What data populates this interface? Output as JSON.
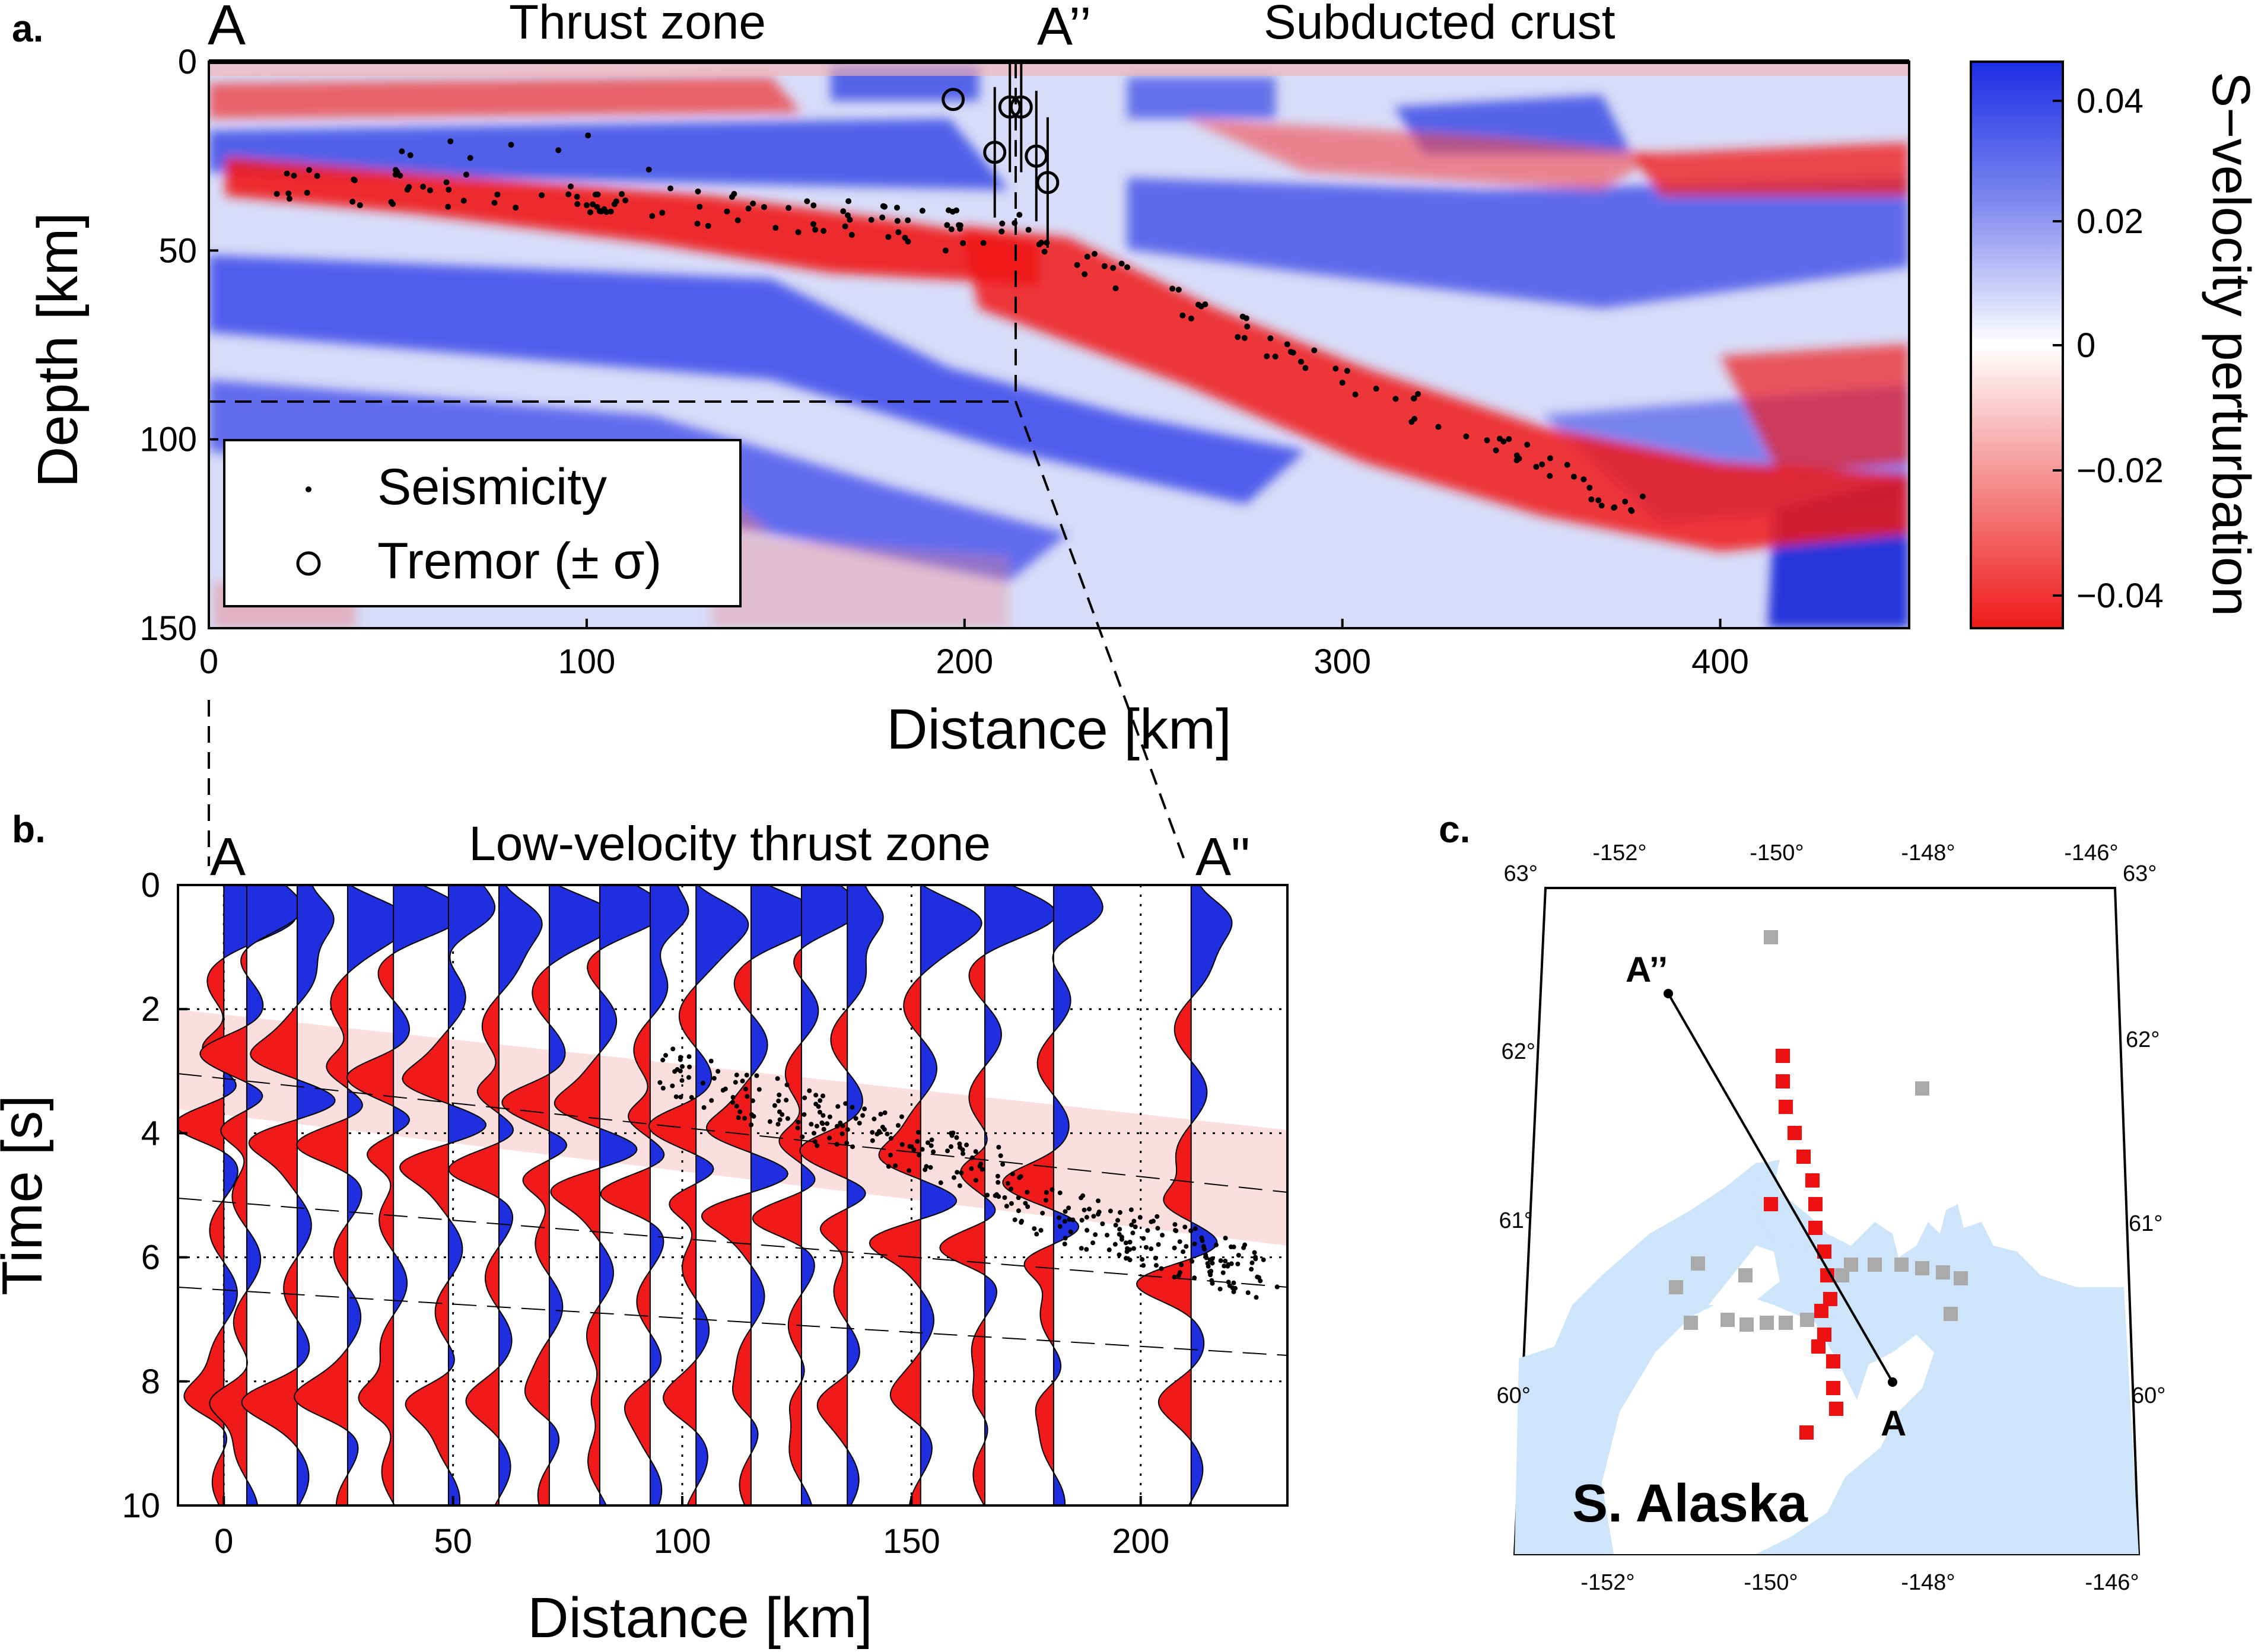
{
  "panel_a": {
    "panel_label": "a.",
    "left_label": "A",
    "mid_label": "A’’",
    "zone_label_1": "Thrust zone",
    "zone_label_2": "Subducted crust",
    "ylabel": "Depth [km]",
    "xlabel": "Distance [km]",
    "xticks": [
      "0",
      "100",
      "200",
      "300",
      "400"
    ],
    "yticks": [
      "0",
      "50",
      "100",
      "150"
    ],
    "legend": {
      "seismicity": "Seismicity",
      "tremor": "Tremor (± σ)"
    },
    "colorbar": {
      "label": "S−velocity perturbation",
      "ticks": [
        "0.04",
        "0.02",
        "0",
        "−0.02",
        "−0.04"
      ]
    }
  },
  "panel_b": {
    "panel_label": "b.",
    "left_label": "A",
    "right_label": "A\"",
    "title": "Low-velocity thrust zone",
    "ylabel": "Time [s]",
    "xlabel": "Distance [km]",
    "xticks": [
      "0",
      "50",
      "100",
      "150",
      "200"
    ],
    "yticks": [
      "0",
      "2",
      "4",
      "6",
      "8",
      "10"
    ]
  },
  "panel_c": {
    "panel_label": "c.",
    "region_label": "S. Alaska",
    "label_start": "A’’",
    "label_end": "A",
    "top_lon_ticks": [
      "-152°",
      "-150°",
      "-148°",
      "-146°"
    ],
    "bottom_lon_ticks": [
      "-152°",
      "-150°",
      "-148°",
      "-146°"
    ],
    "left_lat_ticks": [
      "63°",
      "62°",
      "61°",
      "60°"
    ],
    "right_lat_ticks": [
      "63°",
      "62°",
      "61°",
      "60°"
    ]
  },
  "colors": {
    "positive": "#1f2fe0",
    "negative": "#f01a1a",
    "water": "#cde4fa",
    "station_red": "#ee1111",
    "station_gray": "#aaaaaa",
    "highlight": "#fbdede"
  },
  "chart_data": [
    {
      "type": "heatmap",
      "title": "",
      "xlabel": "Distance [km]",
      "ylabel": "Depth [km]",
      "xlim": [
        0,
        450
      ],
      "ylim": [
        150,
        0
      ],
      "colorbar_range": [
        -0.045,
        0.045
      ],
      "features": [
        {
          "name": "low-velocity thrust zone (red band)",
          "x": [
            0,
            215
          ],
          "depth": [
            25,
            45
          ]
        },
        {
          "name": "subducted crust (red band)",
          "x": [
            215,
            450
          ],
          "depth": [
            50,
            115
          ]
        }
      ],
      "seismicity_sample": [
        {
          "x": 18,
          "y": 35
        },
        {
          "x": 40,
          "y": 38
        },
        {
          "x": 80,
          "y": 22
        },
        {
          "x": 100,
          "y": 38
        },
        {
          "x": 120,
          "y": 40
        },
        {
          "x": 140,
          "y": 42
        },
        {
          "x": 150,
          "y": 44
        },
        {
          "x": 160,
          "y": 43
        },
        {
          "x": 185,
          "y": 42
        },
        {
          "x": 195,
          "y": 50
        },
        {
          "x": 205,
          "y": 48
        },
        {
          "x": 240,
          "y": 60
        },
        {
          "x": 260,
          "y": 68
        },
        {
          "x": 280,
          "y": 78
        },
        {
          "x": 300,
          "y": 85
        },
        {
          "x": 320,
          "y": 88
        },
        {
          "x": 355,
          "y": 105
        },
        {
          "x": 372,
          "y": 118
        }
      ],
      "tremor": [
        {
          "x": 197,
          "y": 10
        },
        {
          "x": 208,
          "y": 24
        },
        {
          "x": 212,
          "y": 12
        },
        {
          "x": 215,
          "y": 12
        },
        {
          "x": 219,
          "y": 25
        },
        {
          "x": 222,
          "y": 32
        }
      ]
    },
    {
      "type": "line",
      "title": "Low-velocity thrust zone",
      "xlabel": "Distance [km]",
      "ylabel": "Time [s]",
      "xlim": [
        -10,
        232
      ],
      "ylim": [
        10,
        0
      ],
      "trace_offsets_km": [
        0,
        5,
        16,
        27,
        37,
        49,
        60,
        71,
        82,
        93,
        103,
        115,
        126,
        136,
        152,
        166,
        181,
        211
      ],
      "highlight_band_s": {
        "x": [
          -10,
          232
        ],
        "top": [
          2.0,
          3.9
        ],
        "bottom": [
          3.5,
          5.8
        ]
      }
    }
  ]
}
